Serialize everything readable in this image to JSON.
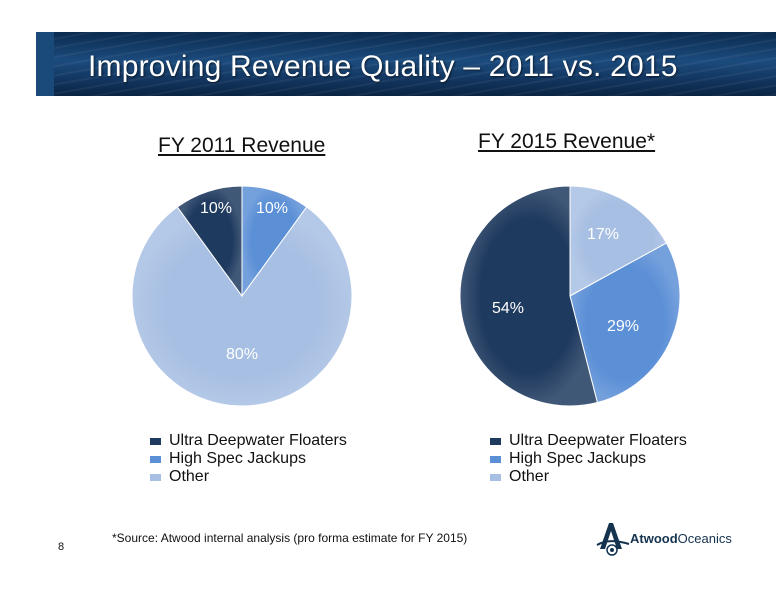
{
  "slide": {
    "title": "Improving Revenue Quality – 2011 vs. 2015",
    "footnote": "*Source: Atwood internal analysis (pro forma estimate for FY 2015)",
    "page_number": "8",
    "logo": {
      "word1": "Atwood",
      "word2": "Oceanics",
      "letter": "A"
    }
  },
  "colors": {
    "ultra_deepwater": "#1f3a5f",
    "high_spec": "#5b8fd6",
    "other": "#a7bfe3",
    "banner": "#1b4b7d"
  },
  "chart_data": [
    {
      "type": "pie",
      "title": "FY 2011 Revenue",
      "slices": [
        {
          "label": "Ultra Deepwater Floaters",
          "value": 10,
          "display": "10%"
        },
        {
          "label": "High Spec Jackups",
          "value": 10,
          "display": "10%"
        },
        {
          "label": "Other",
          "value": 80,
          "display": "80%"
        }
      ],
      "legend": [
        "Ultra Deepwater Floaters",
        "High Spec Jackups",
        "Other"
      ]
    },
    {
      "type": "pie",
      "title": "FY 2015 Revenue*",
      "slices": [
        {
          "label": "Ultra Deepwater Floaters",
          "value": 54,
          "display": "54%"
        },
        {
          "label": "High Spec Jackups",
          "value": 29,
          "display": "29%"
        },
        {
          "label": "Other",
          "value": 17,
          "display": "17%"
        }
      ],
      "legend": [
        "Ultra Deepwater Floaters",
        "High Spec Jackups",
        "Other"
      ]
    }
  ]
}
